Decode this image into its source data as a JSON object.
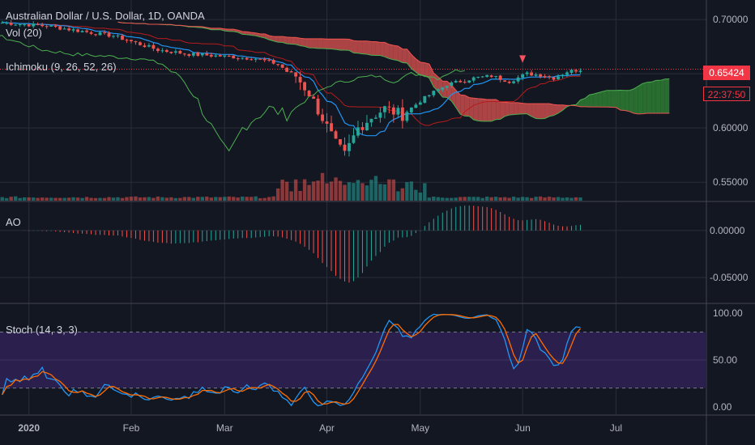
{
  "header": {
    "symbol_title": "Australian Dollar / U.S. Dollar, 1D, OANDA",
    "indicator_vol": "Vol (20)",
    "indicator_ichimoku": "Ichimoku (9, 26, 52, 26)",
    "indicator_ao": "AO",
    "indicator_stoch": "Stoch (14, 3, 3)"
  },
  "price_badges": {
    "last_price": "0.65424",
    "countdown": "22:37:50"
  },
  "colors": {
    "background": "#131722",
    "grid": "#2a2e39",
    "up": "#26a69a",
    "down": "#ef5350",
    "conversion": "#2196f3",
    "base": "#b71c1c",
    "lagging": "#4caf50",
    "cloud_bull": "#2e7d32",
    "cloud_bear": "#c84c4c",
    "stoch_k": "#2196f3",
    "stoch_d": "#ff6d00",
    "stoch_band": "#2a1f4d",
    "text": "#b2b5be"
  },
  "chart_data": [
    {
      "type": "candlestick",
      "pane": "price",
      "yticks": [
        "0.70000",
        "0.65000",
        "0.60000",
        "0.55000"
      ],
      "ylim": [
        0.533,
        0.718
      ],
      "xticks": [
        "2020",
        "Feb",
        "Mar",
        "Apr",
        "May",
        "Jun",
        "Jul"
      ],
      "last_price": 0.65424,
      "signal_marker": "down-arrow",
      "series": [
        {
          "name": "Ichimoku Conversion",
          "values": "approx"
        },
        {
          "name": "Ichimoku Base",
          "values": "approx"
        },
        {
          "name": "Ichimoku Lagging",
          "values": "approx"
        },
        {
          "name": "Cloud",
          "values": "approx"
        },
        {
          "name": "Volume",
          "values": "approx"
        }
      ],
      "close_by_month": [
        {
          "x": "2020",
          "close": 0.695
        },
        {
          "x": "Feb",
          "close": 0.672
        },
        {
          "x": "Mar",
          "close": 0.651
        },
        {
          "x": "Apr",
          "close": 0.613
        },
        {
          "x": "May",
          "close": 0.648
        },
        {
          "x": "Jun",
          "close": 0.654
        }
      ]
    },
    {
      "type": "bar",
      "pane": "AO",
      "yticks": [
        "0.00000",
        "-0.05000"
      ],
      "ylim": [
        -0.075,
        0.03
      ]
    },
    {
      "type": "line",
      "pane": "Stoch",
      "yticks": [
        "100.00",
        "50.00",
        "0.00"
      ],
      "ylim": [
        -8,
        108
      ],
      "bands": [
        80,
        20
      ],
      "series": [
        {
          "name": "%K"
        },
        {
          "name": "%D"
        }
      ]
    }
  ]
}
